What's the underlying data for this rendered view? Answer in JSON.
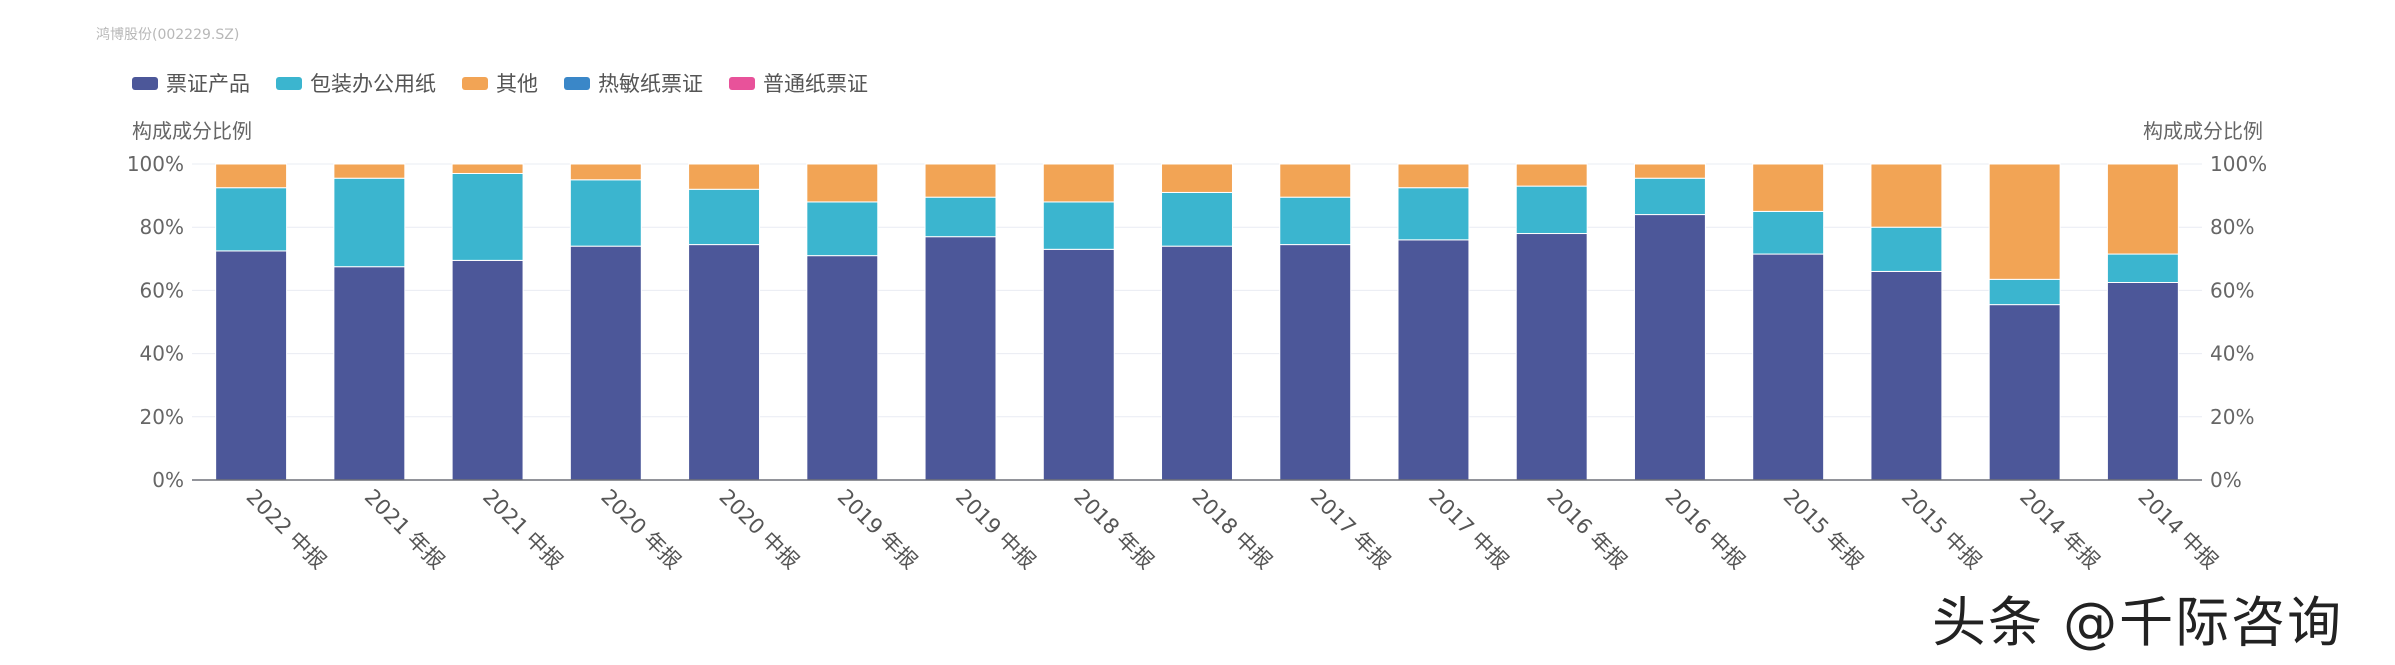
{
  "source_label": "鸿博股份(002229.SZ)",
  "watermark": "头条 @千际咨询",
  "chart_data": {
    "type": "bar",
    "stacked": true,
    "ylabel_left": "构成成分比例",
    "ylabel_right": "构成成分比例",
    "ylim": [
      0,
      100
    ],
    "yticks": [
      "0%",
      "20%",
      "40%",
      "60%",
      "80%",
      "100%"
    ],
    "categories": [
      "2022 中报",
      "2021 年报",
      "2021 中报",
      "2020 年报",
      "2020 中报",
      "2019 年报",
      "2019 中报",
      "2018 年报",
      "2018 中报",
      "2017 年报",
      "2017 中报",
      "2016 年报",
      "2016 中报",
      "2015 年报",
      "2015 中报",
      "2014 年报",
      "2014 中报"
    ],
    "series": [
      {
        "name": "票证产品",
        "color": "#4c5799",
        "values": [
          72.5,
          67.5,
          69.5,
          74,
          74.5,
          71,
          77,
          73,
          74,
          74.5,
          76,
          78,
          84,
          71.5,
          66,
          55.5,
          62.5
        ]
      },
      {
        "name": "包装办公用纸",
        "color": "#3bb5cf",
        "values": [
          20,
          28,
          27.5,
          21,
          17.5,
          17,
          12.5,
          15,
          17,
          15,
          16.5,
          15,
          11.5,
          13.5,
          14,
          8,
          9
        ]
      },
      {
        "name": "其他",
        "color": "#f2a455",
        "values": [
          7.5,
          4.5,
          3,
          5,
          8,
          12,
          10.5,
          12,
          9,
          10.5,
          7.5,
          7,
          4.5,
          15,
          20,
          36.5,
          28.5
        ]
      },
      {
        "name": "热敏纸票证",
        "color": "#3a87c8",
        "values": [
          0,
          0,
          0,
          0,
          0,
          0,
          0,
          0,
          0,
          0,
          0,
          0,
          0,
          0,
          0,
          0,
          0
        ]
      },
      {
        "name": "普通纸票证",
        "color": "#e8529a",
        "values": [
          0,
          0,
          0,
          0,
          0,
          0,
          0,
          0,
          0,
          0,
          0,
          0,
          0,
          0,
          0,
          0,
          0
        ]
      }
    ],
    "grid": true,
    "legend_position": "top-left"
  }
}
